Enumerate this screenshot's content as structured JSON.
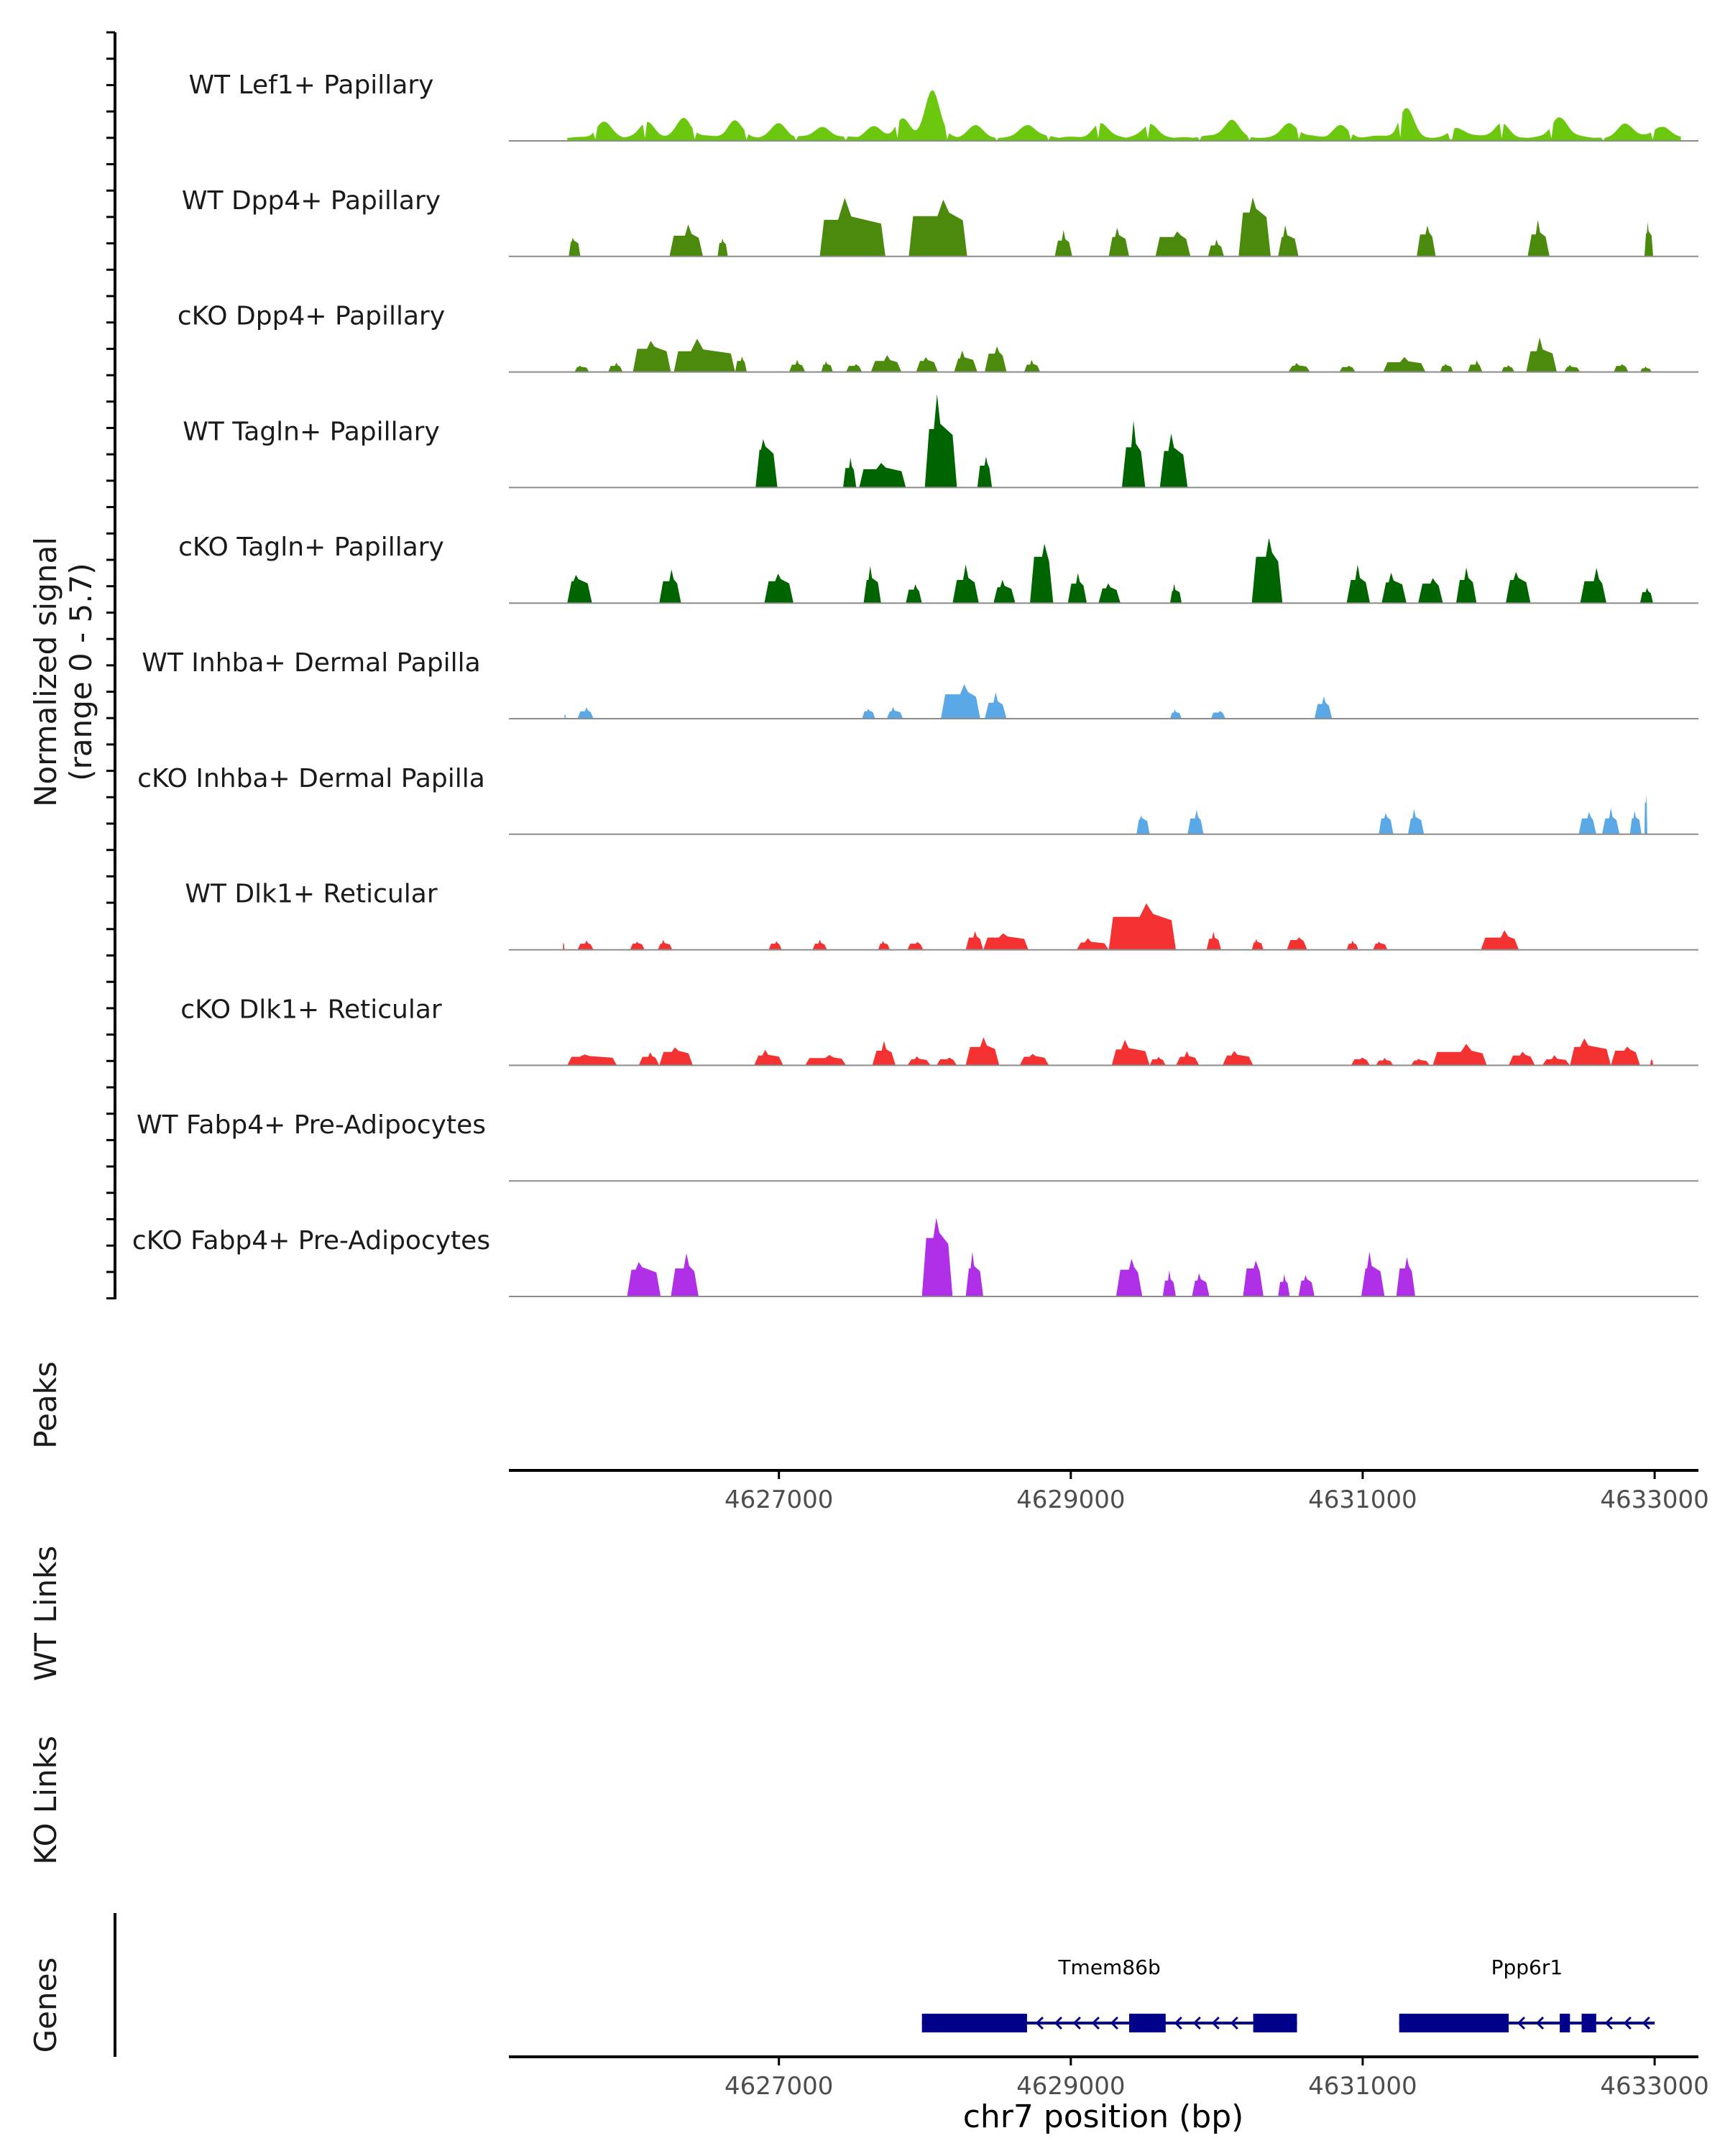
{
  "chart_data": {
    "type": "area",
    "title": "",
    "ylabel": "Normalized signal",
    "ylabel_range": "(range 0 - 5.7)",
    "ylim": [
      0,
      5.7
    ],
    "xlabel": "chr7 position (bp)",
    "xlim": [
      4625150,
      4633300
    ],
    "xticks": [
      4627000,
      4629000,
      4631000,
      4633000
    ],
    "xtick_labels": [
      "4627000",
      "4629000",
      "4631000",
      "4633000"
    ],
    "series": [
      {
        "name": "WT Lef1+ Papillary",
        "color": "#6cc80f",
        "smooth": true,
        "segments": [
          [
            4625550,
            4633180,
            0.35
          ]
        ],
        "peaks": [
          [
            4625800,
            0.9
          ],
          [
            4626100,
            1.0
          ],
          [
            4626350,
            1.2
          ],
          [
            4626700,
            1.1
          ],
          [
            4627000,
            0.8
          ],
          [
            4627300,
            0.7
          ],
          [
            4627650,
            0.6
          ],
          [
            4627850,
            1.2
          ],
          [
            4628050,
            3.0
          ],
          [
            4628350,
            0.7
          ],
          [
            4628700,
            0.8
          ],
          [
            4629200,
            0.9
          ],
          [
            4629550,
            0.8
          ],
          [
            4630100,
            1.1
          ],
          [
            4630500,
            0.9
          ],
          [
            4630850,
            0.8
          ],
          [
            4631300,
            1.8
          ],
          [
            4631650,
            0.6
          ],
          [
            4631950,
            0.9
          ],
          [
            4632350,
            1.3
          ],
          [
            4632800,
            0.9
          ],
          [
            4633050,
            0.7
          ]
        ]
      },
      {
        "name": "WT Dpp4+ Papillary",
        "color": "#4b8a0d",
        "smooth": false,
        "segments": [
          [
            4625560,
            4625640,
            1.2
          ],
          [
            4626250,
            4626480,
            1.7
          ],
          [
            4626580,
            4626650,
            1.1
          ],
          [
            4627280,
            4627730,
            3.0
          ],
          [
            4627890,
            4628290,
            3.3
          ],
          [
            4628890,
            4629010,
            1.3
          ],
          [
            4629260,
            4629400,
            1.6
          ],
          [
            4629580,
            4629820,
            1.6
          ],
          [
            4629940,
            4630050,
            0.9
          ],
          [
            4630150,
            4630370,
            3.6
          ],
          [
            4630420,
            4630560,
            1.6
          ],
          [
            4631370,
            4631500,
            1.8
          ],
          [
            4632130,
            4632280,
            1.8
          ],
          [
            4632930,
            4632990,
            1.9
          ]
        ]
      },
      {
        "name": "cKO Dpp4+ Papillary",
        "color": "#4b8a0d",
        "smooth": false,
        "segments": [
          [
            4625600,
            4625700,
            0.4
          ],
          [
            4625830,
            4625930,
            0.5
          ],
          [
            4626000,
            4626260,
            1.9
          ],
          [
            4626280,
            4626700,
            1.7
          ],
          [
            4626700,
            4626780,
            0.9
          ],
          [
            4627070,
            4627180,
            0.6
          ],
          [
            4627290,
            4627370,
            0.6
          ],
          [
            4627460,
            4627570,
            0.5
          ],
          [
            4627630,
            4627840,
            0.9
          ],
          [
            4627940,
            4628090,
            0.9
          ],
          [
            4628200,
            4628360,
            1.1
          ],
          [
            4628410,
            4628560,
            1.5
          ],
          [
            4628680,
            4628790,
            0.6
          ],
          [
            4630490,
            4630640,
            0.5
          ],
          [
            4630840,
            4630950,
            0.4
          ],
          [
            4631140,
            4631430,
            0.8
          ],
          [
            4631530,
            4631620,
            0.5
          ],
          [
            4631720,
            4631820,
            0.6
          ],
          [
            4631950,
            4632040,
            0.4
          ],
          [
            4632120,
            4632330,
            1.7
          ],
          [
            4632380,
            4632490,
            0.4
          ],
          [
            4632720,
            4632820,
            0.5
          ],
          [
            4632900,
            4632980,
            0.3
          ]
        ]
      },
      {
        "name": "WT Tagln+ Papillary",
        "color": "#006400",
        "smooth": false,
        "segments": [
          [
            4626840,
            4626990,
            3.1
          ],
          [
            4627440,
            4627530,
            1.6
          ],
          [
            4627550,
            4627870,
            1.5
          ],
          [
            4628000,
            4628220,
            4.8
          ],
          [
            4628360,
            4628460,
            1.8
          ],
          [
            4629350,
            4629510,
            3.3
          ],
          [
            4629610,
            4629800,
            3.0
          ]
        ]
      },
      {
        "name": "cKO Tagln+ Papillary",
        "color": "#006400",
        "smooth": false,
        "segments": [
          [
            4625550,
            4625720,
            1.8
          ],
          [
            4626180,
            4626330,
            1.8
          ],
          [
            4626900,
            4627100,
            1.8
          ],
          [
            4627580,
            4627700,
            1.9
          ],
          [
            4627870,
            4627980,
            1.1
          ],
          [
            4628190,
            4628370,
            1.9
          ],
          [
            4628470,
            4628620,
            1.3
          ],
          [
            4628720,
            4628880,
            3.8
          ],
          [
            4628980,
            4629110,
            1.6
          ],
          [
            4629190,
            4629340,
            1.2
          ],
          [
            4629680,
            4629760,
            1.0
          ],
          [
            4630240,
            4630450,
            3.8
          ],
          [
            4630890,
            4631050,
            1.9
          ],
          [
            4631130,
            4631300,
            1.7
          ],
          [
            4631380,
            4631550,
            1.6
          ],
          [
            4631640,
            4631780,
            1.9
          ],
          [
            4631980,
            4632150,
            1.9
          ],
          [
            4632490,
            4632670,
            1.8
          ],
          [
            4632900,
            4632990,
            0.9
          ]
        ]
      },
      {
        "name": "WT Inhba+ Dermal Papilla",
        "color": "#5ba8e6",
        "smooth": false,
        "segments": [
          [
            4625530,
            4625540,
            0.3
          ],
          [
            4625620,
            4625730,
            0.6
          ],
          [
            4627570,
            4627660,
            0.6
          ],
          [
            4627740,
            4627850,
            0.6
          ],
          [
            4628110,
            4628380,
            2.0
          ],
          [
            4628410,
            4628560,
            1.3
          ],
          [
            4629680,
            4629760,
            0.5
          ],
          [
            4629960,
            4630060,
            0.5
          ],
          [
            4630670,
            4630790,
            1.2
          ]
        ]
      },
      {
        "name": "cKO Inhba+ Dermal Papilla",
        "color": "#5ba8e6",
        "smooth": false,
        "segments": [
          [
            4629450,
            4629540,
            1.2
          ],
          [
            4629800,
            4629910,
            1.3
          ],
          [
            4631110,
            4631210,
            1.3
          ],
          [
            4631310,
            4631420,
            1.3
          ],
          [
            4632480,
            4632600,
            1.3
          ],
          [
            4632640,
            4632760,
            1.3
          ],
          [
            4632830,
            4632910,
            1.3
          ],
          [
            4632930,
            4632950,
            2.6
          ]
        ]
      },
      {
        "name": "WT Dlk1+ Reticular",
        "color": "#f53232",
        "smooth": false,
        "segments": [
          [
            4625520,
            4625530,
            0.5
          ],
          [
            4625620,
            4625730,
            0.5
          ],
          [
            4625980,
            4626080,
            0.5
          ],
          [
            4626170,
            4626270,
            0.5
          ],
          [
            4626930,
            4627020,
            0.5
          ],
          [
            4627230,
            4627330,
            0.5
          ],
          [
            4627680,
            4627760,
            0.5
          ],
          [
            4627880,
            4627990,
            0.5
          ],
          [
            4628280,
            4628400,
            1.0
          ],
          [
            4628400,
            4628710,
            1.0
          ],
          [
            4629040,
            4629260,
            0.6
          ],
          [
            4629260,
            4629720,
            2.7
          ],
          [
            4629930,
            4630030,
            0.9
          ],
          [
            4630240,
            4630320,
            0.6
          ],
          [
            4630480,
            4630620,
            0.8
          ],
          [
            4630890,
            4630970,
            0.5
          ],
          [
            4631070,
            4631170,
            0.5
          ],
          [
            4631810,
            4632070,
            1.0
          ]
        ]
      },
      {
        "name": "cKO Dlk1+ Reticular",
        "color": "#f53232",
        "smooth": false,
        "segments": [
          [
            4625550,
            4625890,
            0.7
          ],
          [
            4626040,
            4626180,
            0.7
          ],
          [
            4626180,
            4626410,
            1.1
          ],
          [
            4626830,
            4627030,
            0.8
          ],
          [
            4627180,
            4627460,
            0.6
          ],
          [
            4627640,
            4627800,
            1.2
          ],
          [
            4627880,
            4628040,
            0.5
          ],
          [
            4628080,
            4628220,
            0.5
          ],
          [
            4628280,
            4628510,
            1.5
          ],
          [
            4628650,
            4628850,
            0.7
          ],
          [
            4629280,
            4629540,
            1.3
          ],
          [
            4629540,
            4629650,
            0.5
          ],
          [
            4629720,
            4629880,
            0.7
          ],
          [
            4630040,
            4630250,
            0.8
          ],
          [
            4630920,
            4631050,
            0.5
          ],
          [
            4631090,
            4631210,
            0.4
          ],
          [
            4631330,
            4631460,
            0.4
          ],
          [
            4631480,
            4631850,
            1.1
          ],
          [
            4632000,
            4632180,
            0.8
          ],
          [
            4632230,
            4632420,
            0.5
          ],
          [
            4632420,
            4632700,
            1.5
          ],
          [
            4632700,
            4632900,
            1.2
          ],
          [
            4632970,
            4632990,
            0.4
          ]
        ]
      },
      {
        "name": "WT Fabp4+ Pre-Adipocytes",
        "color": "#b030e8",
        "smooth": false,
        "segments": []
      },
      {
        "name": "cKO Fabp4+ Pre-Adipocytes",
        "color": "#b030e8",
        "smooth": false,
        "segments": [
          [
            4625960,
            4626190,
            2.2
          ],
          [
            4626260,
            4626450,
            2.3
          ],
          [
            4627980,
            4628190,
            4.8
          ],
          [
            4628280,
            4628400,
            2.3
          ],
          [
            4629310,
            4629490,
            2.2
          ],
          [
            4629630,
            4629720,
            1.3
          ],
          [
            4629830,
            4629950,
            1.3
          ],
          [
            4630180,
            4630320,
            2.3
          ],
          [
            4630420,
            4630500,
            1.2
          ],
          [
            4630560,
            4630670,
            1.3
          ],
          [
            4630990,
            4631150,
            2.3
          ],
          [
            4631230,
            4631360,
            2.3
          ]
        ]
      }
    ],
    "tracks": {
      "peaks_label": "Peaks",
      "wt_links_label": "WT Links",
      "ko_links_label": "KO Links",
      "genes_label": "Genes"
    },
    "genes": [
      {
        "name": "Tmem86b",
        "strand": "-",
        "start": 4627980,
        "end": 4630550,
        "exons": [
          [
            4627980,
            4628700
          ],
          [
            4629400,
            4629650
          ],
          [
            4630250,
            4630550
          ]
        ]
      },
      {
        "name": "Ppp6r1",
        "strand": "-",
        "start": 4631250,
        "end": 4633000,
        "exons": [
          [
            4631250,
            4632000
          ],
          [
            4632350,
            4632420
          ],
          [
            4632500,
            4632600
          ]
        ]
      }
    ]
  }
}
